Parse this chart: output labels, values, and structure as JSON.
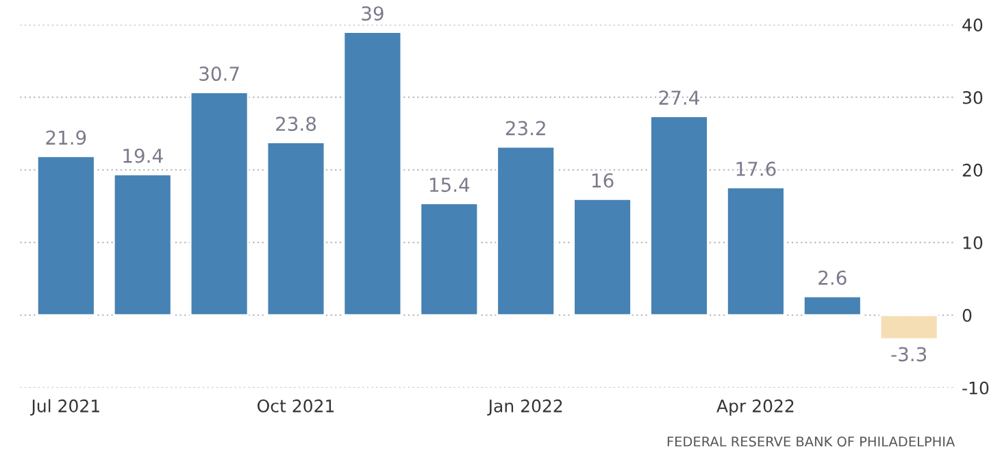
{
  "chart_data": {
    "type": "bar",
    "categories": [
      "Jul 2021",
      null,
      null,
      "Oct 2021",
      null,
      null,
      "Jan 2022",
      null,
      null,
      "Apr 2022",
      null,
      null
    ],
    "values": [
      21.9,
      19.4,
      30.7,
      23.8,
      39,
      15.4,
      23.2,
      16,
      27.4,
      17.6,
      2.6,
      -3.3
    ],
    "colors": [
      "#4682b4",
      "#4682b4",
      "#4682b4",
      "#4682b4",
      "#4682b4",
      "#4682b4",
      "#4682b4",
      "#4682b4",
      "#4682b4",
      "#4682b4",
      "#4682b4",
      "#f5deb3"
    ],
    "ylim": [
      -10,
      40
    ],
    "yticks": [
      -10,
      0,
      10,
      20,
      30,
      40
    ],
    "grid": "y",
    "data_labels": true,
    "annotations": [
      "FEDERAL RESERVE BANK OF PHILADELPHIA"
    ]
  }
}
